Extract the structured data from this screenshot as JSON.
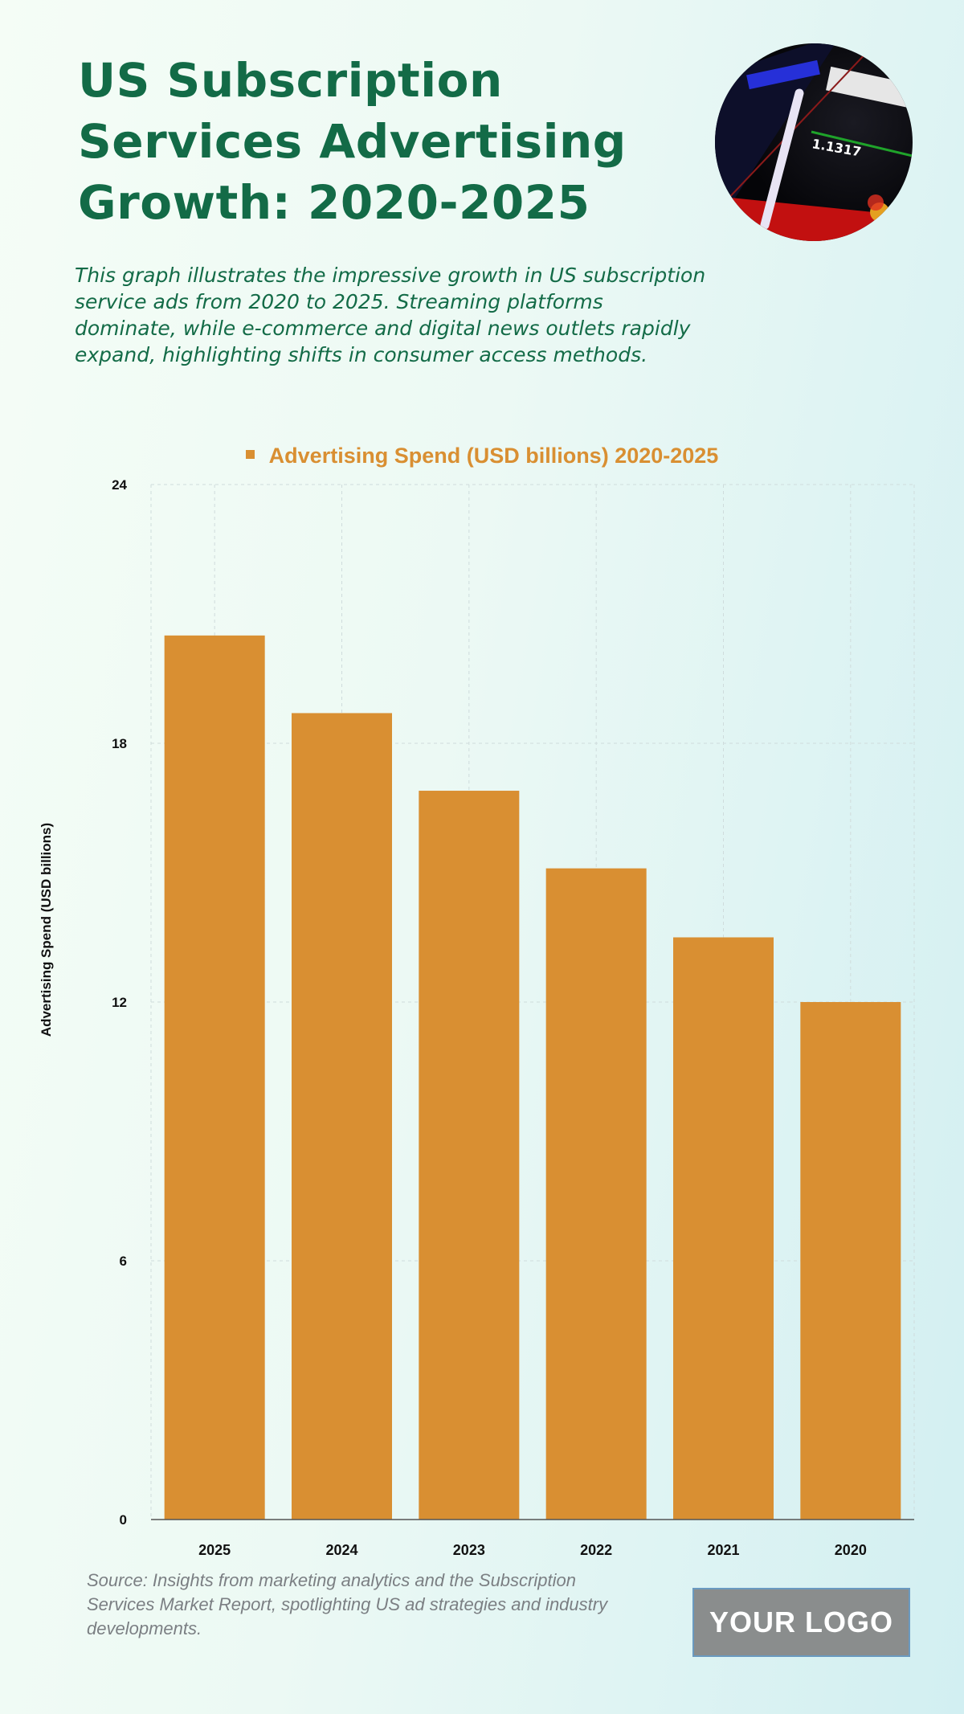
{
  "header": {
    "title": "US Subscription Services Advertising Growth: 2020-2025",
    "subtitle": "This graph illustrates the impressive growth in US subscription service ads from 2020 to 2025. Streaming platforms dominate, while e-commerce and digital news outlets rapidly expand, highlighting shifts in consumer access methods."
  },
  "footer": {
    "source": "Source: Insights from marketing analytics and the Subscription Services Market Report, spotlighting US ad strategies and industry developments.",
    "logo": "YOUR LOGO"
  },
  "colors": {
    "bar": "#d98f32",
    "title": "#136b47"
  },
  "chart_data": {
    "type": "bar",
    "title": "",
    "legend": [
      "Advertising Spend (USD billions) 2020-2025"
    ],
    "legend_placement": "top-center",
    "categories": [
      "2025",
      "2024",
      "2023",
      "2022",
      "2021",
      "2020"
    ],
    "values": [
      20.5,
      18.7,
      16.9,
      15.1,
      13.5,
      12.0
    ],
    "xlabel": "",
    "ylabel": "Advertising Spend (USD billions)",
    "ylim": [
      0,
      24
    ],
    "yticks": [
      "0",
      "6",
      "12",
      "18",
      "24"
    ],
    "grid": true
  }
}
